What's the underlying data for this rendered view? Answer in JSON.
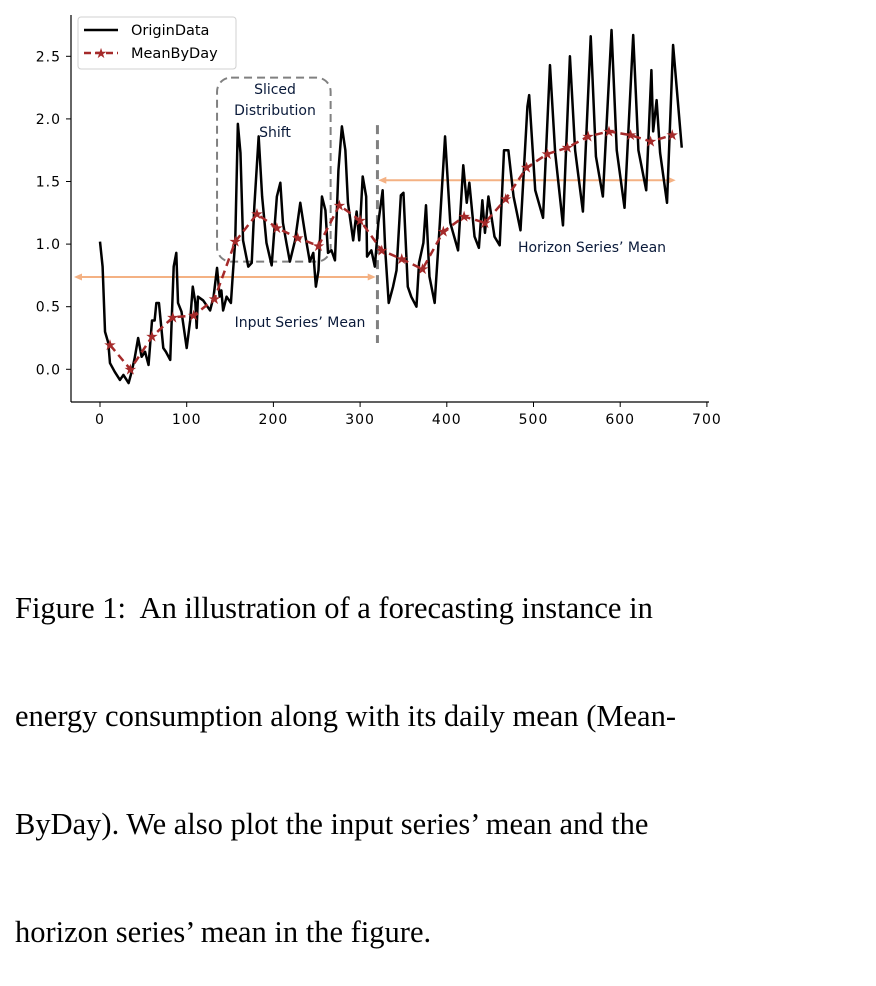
{
  "chart_data": {
    "type": "line",
    "xlim": [
      -30,
      700
    ],
    "ylim": [
      -0.25,
      2.85
    ],
    "xticks": [
      0,
      100,
      200,
      300,
      400,
      500,
      600,
      700
    ],
    "yticks": [
      "0.0",
      "0.5",
      "1.0",
      "1.5",
      "2.0",
      "2.5"
    ],
    "xlabel": "",
    "ylabel": "",
    "grid": false,
    "legend_position": "top-left",
    "series": [
      {
        "name": "OriginData",
        "color": "#000000",
        "style": "solid",
        "x": [
          0,
          3,
          5.8,
          9.6,
          11.5,
          17,
          23,
          27,
          33,
          36.5,
          40,
          44,
          48,
          52,
          56,
          60,
          63,
          65,
          68,
          73,
          76,
          81,
          85,
          88,
          90,
          94,
          100,
          104,
          107,
          110,
          111.5,
          113,
          119,
          127,
          131,
          135,
          138,
          140,
          142,
          146,
          151,
          153,
          156,
          159,
          162,
          165,
          171,
          175,
          178,
          183,
          187,
          192,
          198,
          204,
          208,
          211,
          215,
          219,
          225,
          231,
          237,
          242,
          246,
          249,
          252,
          256,
          260,
          263,
          267,
          271,
          275,
          279,
          283,
          286,
          292,
          296,
          299,
          303,
          307,
          308,
          313,
          317,
          321,
          326,
          329,
          333,
          338,
          342,
          347,
          350,
          355,
          359,
          365,
          368,
          373,
          376,
          380,
          386,
          392,
          398,
          404,
          413,
          419,
          423,
          426,
          432,
          437,
          441,
          444,
          448,
          455,
          461,
          466,
          471,
          477,
          485,
          493,
          495,
          502,
          511,
          519,
          525,
          534,
          542,
          548,
          557,
          566,
          572,
          580,
          590,
          596,
          605,
          615,
          621,
          630,
          636,
          638,
          642,
          646,
          654,
          661,
          671
        ],
        "y": [
          1.02,
          0.82,
          0.3,
          0.21,
          0.05,
          -0.02,
          -0.085,
          -0.045,
          -0.11,
          -0.02,
          0.09,
          0.25,
          0.1,
          0.14,
          0.035,
          0.39,
          0.39,
          0.53,
          0.53,
          0.17,
          0.14,
          0.075,
          0.82,
          0.93,
          0.53,
          0.46,
          0.17,
          0.39,
          0.66,
          0.53,
          0.33,
          0.58,
          0.55,
          0.47,
          0.58,
          0.81,
          0.58,
          0.63,
          0.47,
          0.58,
          0.53,
          0.74,
          1.03,
          1.96,
          1.73,
          1.03,
          0.82,
          0.85,
          1.3,
          1.86,
          1.38,
          1.01,
          0.83,
          1.38,
          1.49,
          1.17,
          1.01,
          0.86,
          1.03,
          1.33,
          1.06,
          0.86,
          0.93,
          0.66,
          0.79,
          1.38,
          1.27,
          0.93,
          0.95,
          0.87,
          1.59,
          1.94,
          1.75,
          1.33,
          1.03,
          1.26,
          1.03,
          1.54,
          1.38,
          0.9,
          0.95,
          0.82,
          1.17,
          1.43,
          0.95,
          0.53,
          0.66,
          0.79,
          1.39,
          1.41,
          0.66,
          0.58,
          0.5,
          0.85,
          1.01,
          1.31,
          0.74,
          0.53,
          1.17,
          1.86,
          1.17,
          0.95,
          1.63,
          1.33,
          1.49,
          1.06,
          0.97,
          1.35,
          1.09,
          1.38,
          1.06,
          0.99,
          1.75,
          1.75,
          1.38,
          1.11,
          2.1,
          2.19,
          1.43,
          1.21,
          2.43,
          1.73,
          1.15,
          2.5,
          1.75,
          1.26,
          2.66,
          1.7,
          1.38,
          2.71,
          1.75,
          1.29,
          2.67,
          1.75,
          1.43,
          2.39,
          1.9,
          2.15,
          1.73,
          1.33,
          2.59,
          1.77
        ]
      },
      {
        "name": "MeanByDay",
        "color": "#a52a2a",
        "style": "dashed",
        "marker": "star",
        "x": [
          11.5,
          35,
          60,
          84,
          108,
          132,
          156,
          181,
          204,
          228,
          252,
          276,
          300,
          325,
          348,
          372,
          396,
          420,
          444,
          468,
          492,
          516,
          539,
          563,
          587,
          612,
          635,
          660
        ],
        "y": [
          0.195,
          0.0,
          0.26,
          0.415,
          0.43,
          0.56,
          1.02,
          1.24,
          1.13,
          1.05,
          0.985,
          1.31,
          1.19,
          0.95,
          0.88,
          0.8,
          1.1,
          1.22,
          1.17,
          1.36,
          1.61,
          1.72,
          1.77,
          1.86,
          1.9,
          1.87,
          1.82,
          1.87
        ]
      }
    ],
    "annotations": {
      "input_mean": {
        "label": "Input Series’ Mean",
        "value": 0.737,
        "x_range": [
          -30,
          318
        ],
        "color": "#f4b183"
      },
      "horizon_mean": {
        "label": "Horizon Series’ Mean",
        "value": 1.51,
        "x_range": [
          321,
          664
        ],
        "color": "#f4b183"
      },
      "split_line": {
        "x": 320,
        "y_range": [
          0.21,
          1.95
        ],
        "color": "#808080"
      },
      "sliced_box": {
        "label_lines": [
          "Sliced",
          "Distribution",
          "Shift"
        ],
        "x_range": [
          135,
          266
        ],
        "y_range": [
          0.86,
          2.33
        ],
        "color": "#808080"
      }
    }
  },
  "caption": {
    "lines": [
      "Figure 1:  An illustration of a forecasting instance in",
      "energy consumption along with its daily mean (Mean-",
      "ByDay). We also plot the input series’ mean and the",
      "horizon series’ mean in the figure."
    ]
  }
}
